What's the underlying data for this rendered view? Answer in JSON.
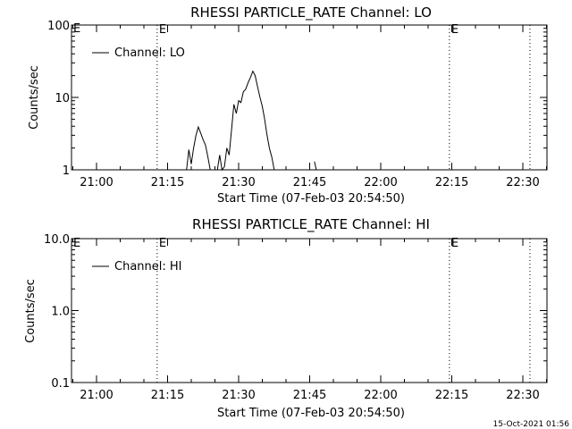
{
  "footer": {
    "timestamp": "15-Oct-2021 01:56"
  },
  "chart_data": [
    {
      "type": "line",
      "title": "RHESSI PARTICLE_RATE Channel: LO",
      "xlabel": "Start Time (07-Feb-03 20:54:50)",
      "ylabel": "Counts/sec",
      "y_scale": "log",
      "ylim": [
        1,
        100
      ],
      "xlim": [
        "20:54:50",
        "22:34:00"
      ],
      "x_ticks": [
        "21:00",
        "21:15",
        "21:30",
        "21:45",
        "22:00",
        "22:15",
        "22:30"
      ],
      "x_tick_minutes": [
        0,
        15,
        30,
        45,
        60,
        75,
        90
      ],
      "y_ticks": [
        "1",
        "10",
        "100"
      ],
      "y_tick_values": [
        1,
        10,
        100
      ],
      "legend": {
        "position": "top-left",
        "entries": [
          "Channel: LO"
        ]
      },
      "markers": [
        {
          "time_minute": 12.8,
          "style": "dotted",
          "label": "E"
        },
        {
          "time_minute": 74.5,
          "style": "dotted",
          "label": "E"
        },
        {
          "time_minute": 91.5,
          "style": "dotted",
          "label": ""
        }
      ],
      "corner_label": "E",
      "series": [
        {
          "name": "Channel: LO",
          "x": [
            19.0,
            19.5,
            20.0,
            20.5,
            21.0,
            21.5,
            22.0,
            22.5,
            23.0,
            23.5,
            24.0,
            25.5,
            26.0,
            26.5,
            27.0,
            27.5,
            28.0,
            28.5,
            29.0,
            29.5,
            30.0,
            30.5,
            31.0,
            31.5,
            32.0,
            32.5,
            33.0,
            33.5,
            34.0,
            34.5,
            35.0,
            35.5,
            36.0,
            36.5,
            37.0,
            37.5,
            38.0,
            38.5
          ],
          "y": [
            1.0,
            1.9,
            1.2,
            2.0,
            3.0,
            3.9,
            3.2,
            2.6,
            2.2,
            1.5,
            1.0,
            1.0,
            1.6,
            1.0,
            1.1,
            2.0,
            1.6,
            3.5,
            8.0,
            6.0,
            9.0,
            8.5,
            12.0,
            13.0,
            16.0,
            19.0,
            23.0,
            20.0,
            14.0,
            10.0,
            7.5,
            5.0,
            3.0,
            2.0,
            1.5,
            1.0,
            1.0,
            1.0
          ]
        },
        {
          "name": "",
          "x": [
            46.0,
            46.4
          ],
          "y": [
            1.3,
            1.0
          ]
        }
      ]
    },
    {
      "type": "line",
      "title": "RHESSI PARTICLE_RATE Channel: HI",
      "xlabel": "Start Time (07-Feb-03 20:54:50)",
      "ylabel": "Counts/sec",
      "y_scale": "log",
      "ylim": [
        0.1,
        10
      ],
      "xlim": [
        "20:54:50",
        "22:34:00"
      ],
      "x_ticks": [
        "21:00",
        "21:15",
        "21:30",
        "21:45",
        "22:00",
        "22:15",
        "22:30"
      ],
      "x_tick_minutes": [
        0,
        15,
        30,
        45,
        60,
        75,
        90
      ],
      "y_ticks": [
        "0.1",
        "1.0",
        "10.0"
      ],
      "y_tick_values": [
        0.1,
        1,
        10
      ],
      "legend": {
        "position": "top-left",
        "entries": [
          "Channel: HI"
        ]
      },
      "markers": [
        {
          "time_minute": 12.8,
          "style": "dotted",
          "label": "E"
        },
        {
          "time_minute": 74.5,
          "style": "dotted",
          "label": "E"
        },
        {
          "time_minute": 91.5,
          "style": "dotted",
          "label": ""
        }
      ],
      "corner_label": "E",
      "series": [
        {
          "name": "Channel: HI",
          "x": [],
          "y": []
        }
      ]
    }
  ]
}
